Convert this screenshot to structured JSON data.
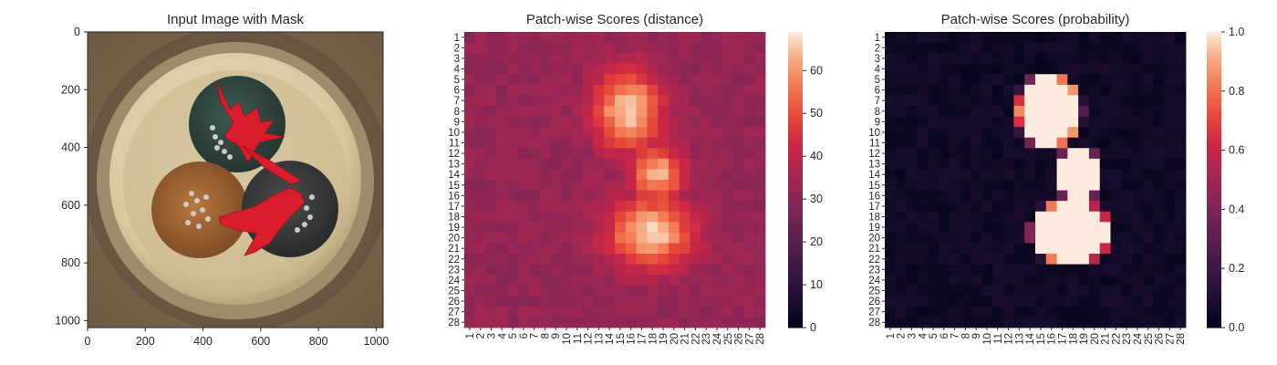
{
  "chart_data": [
    {
      "type": "image",
      "title": "Input Image with Mask",
      "xlim": [
        0,
        1024
      ],
      "ylim": [
        1024,
        0
      ],
      "xticks": [
        "0",
        "200",
        "400",
        "600",
        "800",
        "1000"
      ],
      "yticks": [
        "0",
        "200",
        "400",
        "600",
        "800",
        "1000"
      ],
      "content": "photograph of three insulated cable cores inside a round sheath with a red anomaly mask overlay",
      "overlay_color": "#d81e2c",
      "cables": [
        "teal",
        "orange-brown",
        "dark-grey"
      ]
    },
    {
      "type": "heatmap",
      "title": "Patch-wise Scores (distance)",
      "rows": 28,
      "cols": 28,
      "row_labels": [
        "1",
        "2",
        "3",
        "4",
        "5",
        "6",
        "7",
        "8",
        "9",
        "10",
        "11",
        "12",
        "13",
        "14",
        "15",
        "16",
        "17",
        "18",
        "19",
        "20",
        "21",
        "22",
        "23",
        "24",
        "25",
        "26",
        "27",
        "28"
      ],
      "col_labels": [
        "1",
        "2",
        "3",
        "4",
        "5",
        "6",
        "7",
        "8",
        "9",
        "10",
        "11",
        "12",
        "13",
        "14",
        "15",
        "16",
        "17",
        "18",
        "19",
        "20",
        "21",
        "22",
        "23",
        "24",
        "25",
        "26",
        "27",
        "28"
      ],
      "colorbar": {
        "min": 0,
        "max": 69,
        "ticks": [
          "0",
          "10",
          "20",
          "30",
          "40",
          "50",
          "60"
        ]
      },
      "colormap": "rocket",
      "background_level": 32,
      "hotspots": [
        {
          "row": 8,
          "col": 16.5,
          "value": 63
        },
        {
          "row": 19.5,
          "col": 18.5,
          "value": 69
        }
      ]
    },
    {
      "type": "heatmap",
      "title": "Patch-wise Scores (probability)",
      "rows": 28,
      "cols": 28,
      "row_labels": [
        "1",
        "2",
        "3",
        "4",
        "5",
        "6",
        "7",
        "8",
        "9",
        "10",
        "11",
        "12",
        "13",
        "14",
        "15",
        "16",
        "17",
        "18",
        "19",
        "20",
        "21",
        "22",
        "23",
        "24",
        "25",
        "26",
        "27",
        "28"
      ],
      "col_labels": [
        "1",
        "2",
        "3",
        "4",
        "5",
        "6",
        "7",
        "8",
        "9",
        "10",
        "11",
        "12",
        "13",
        "14",
        "15",
        "16",
        "17",
        "18",
        "19",
        "20",
        "21",
        "22",
        "23",
        "24",
        "25",
        "26",
        "27",
        "28"
      ],
      "colorbar": {
        "min": 0.0,
        "max": 1.0,
        "ticks": [
          "0.0",
          "0.2",
          "0.4",
          "0.6",
          "0.8",
          "1.0"
        ]
      },
      "colormap": "rocket",
      "background_level": 0.02,
      "hotspots": [
        {
          "row": 8,
          "col": 16.5,
          "value": 1.0
        },
        {
          "row": 19.5,
          "col": 18.5,
          "value": 1.0
        }
      ]
    }
  ]
}
